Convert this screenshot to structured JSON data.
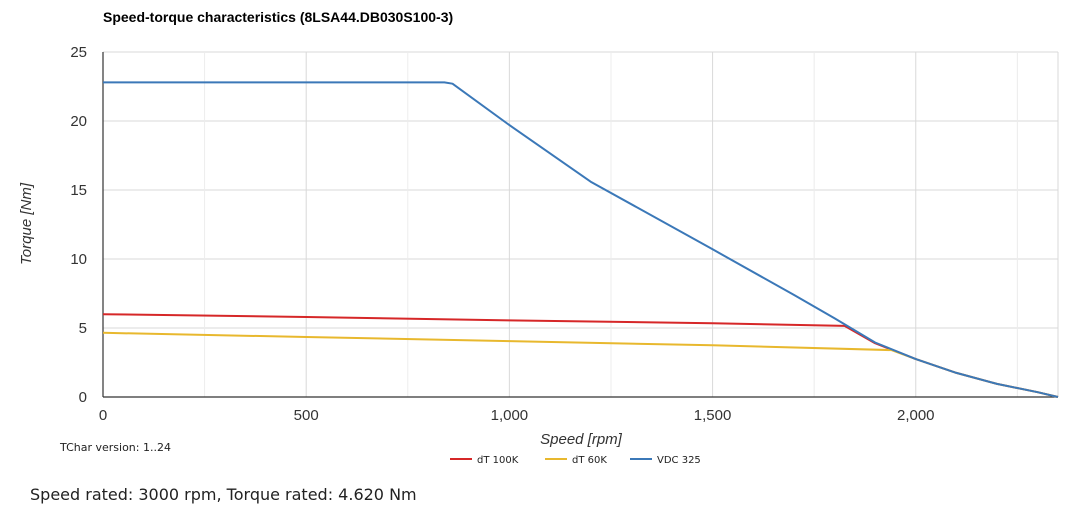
{
  "chart_data": {
    "type": "line",
    "title": "Speed-torque characteristics (8LSA44.DB030S100-3)",
    "xlabel": "Speed [rpm]",
    "ylabel": "Torque [Nm]",
    "xlim": [
      0,
      2350
    ],
    "ylim": [
      0,
      25
    ],
    "xticks": [
      0,
      500,
      1000,
      1500,
      2000
    ],
    "xtick_labels": [
      "0",
      "500",
      "1,000",
      "1,500",
      "2,000"
    ],
    "yticks": [
      0,
      5,
      10,
      15,
      20,
      25
    ],
    "ytick_labels": [
      "0",
      "5",
      "10",
      "15",
      "20",
      "25"
    ],
    "grid": true,
    "legend_position": "bottom-center",
    "series": [
      {
        "name": "dT 100K",
        "color": "#d62728",
        "x": [
          0,
          500,
          1000,
          1500,
          1825,
          1900,
          2000,
          2100,
          2200,
          2300,
          2350
        ],
        "y": [
          6.0,
          5.8,
          5.55,
          5.35,
          5.15,
          3.9,
          2.75,
          1.75,
          0.95,
          0.35,
          0
        ]
      },
      {
        "name": "dT 60K",
        "color": "#e8b82e",
        "x": [
          0,
          500,
          1000,
          1500,
          1940,
          2000,
          2100,
          2200,
          2300,
          2350
        ],
        "y": [
          4.65,
          4.35,
          4.05,
          3.75,
          3.4,
          2.75,
          1.75,
          0.95,
          0.35,
          0
        ]
      },
      {
        "name": "VDC 325",
        "color": "#3b78b8",
        "x": [
          0,
          840,
          860,
          1000,
          1200,
          1500,
          1700,
          1800,
          1900,
          2000,
          2100,
          2200,
          2300,
          2350
        ],
        "y": [
          22.8,
          22.8,
          22.7,
          19.7,
          15.6,
          10.7,
          7.4,
          5.7,
          3.95,
          2.75,
          1.75,
          0.95,
          0.35,
          0
        ]
      }
    ]
  },
  "version_note": "TChar version: 1..24",
  "footer": "Speed rated: 3000 rpm, Torque rated: 4.620 Nm"
}
